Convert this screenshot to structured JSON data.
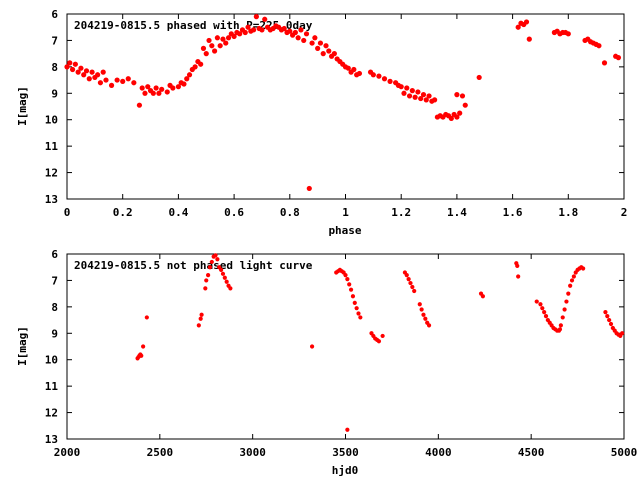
{
  "chart_data": [
    {
      "type": "scatter",
      "title": "204219-0815.5 phased with P=225.0day",
      "xlabel": "phase",
      "ylabel": "I[mag]",
      "xlim": [
        0,
        2
      ],
      "ylim": [
        13,
        6
      ],
      "y_inverted": true,
      "grid": false,
      "marker_color": "#ff0000",
      "x_ticks": [
        "0",
        "0.2",
        "0.4",
        "0.6",
        "0.8",
        "1",
        "1.2",
        "1.4",
        "1.6",
        "1.8",
        "2"
      ],
      "y_ticks": [
        "6",
        "7",
        "8",
        "9",
        "10",
        "11",
        "12",
        "13"
      ],
      "series": [
        {
          "points": [
            [
              0.0,
              8.0
            ],
            [
              0.01,
              7.85
            ],
            [
              0.02,
              8.1
            ],
            [
              0.03,
              7.9
            ],
            [
              0.04,
              8.2
            ],
            [
              0.05,
              8.05
            ],
            [
              0.06,
              8.3
            ],
            [
              0.07,
              8.15
            ],
            [
              0.08,
              8.45
            ],
            [
              0.09,
              8.2
            ],
            [
              0.1,
              8.4
            ],
            [
              0.11,
              8.3
            ],
            [
              0.12,
              8.6
            ],
            [
              0.13,
              8.2
            ],
            [
              0.14,
              8.5
            ],
            [
              0.16,
              8.7
            ],
            [
              0.18,
              8.5
            ],
            [
              0.2,
              8.55
            ],
            [
              0.22,
              8.45
            ],
            [
              0.24,
              8.6
            ],
            [
              0.26,
              9.45
            ],
            [
              0.27,
              8.8
            ],
            [
              0.28,
              9.0
            ],
            [
              0.29,
              8.75
            ],
            [
              0.3,
              8.9
            ],
            [
              0.31,
              9.0
            ],
            [
              0.32,
              8.8
            ],
            [
              0.33,
              9.0
            ],
            [
              0.34,
              8.85
            ],
            [
              0.36,
              8.95
            ],
            [
              0.37,
              8.7
            ],
            [
              0.38,
              8.8
            ],
            [
              0.4,
              8.75
            ],
            [
              0.41,
              8.6
            ],
            [
              0.42,
              8.65
            ],
            [
              0.43,
              8.45
            ],
            [
              0.44,
              8.3
            ],
            [
              0.45,
              8.1
            ],
            [
              0.46,
              8.0
            ],
            [
              0.47,
              7.8
            ],
            [
              0.48,
              7.9
            ],
            [
              0.49,
              7.3
            ],
            [
              0.5,
              7.5
            ],
            [
              0.51,
              7.0
            ],
            [
              0.52,
              7.2
            ],
            [
              0.53,
              7.4
            ],
            [
              0.54,
              6.9
            ],
            [
              0.55,
              7.2
            ],
            [
              0.56,
              6.95
            ],
            [
              0.57,
              7.1
            ],
            [
              0.58,
              6.9
            ],
            [
              0.59,
              6.75
            ],
            [
              0.6,
              6.85
            ],
            [
              0.61,
              6.7
            ],
            [
              0.62,
              6.75
            ],
            [
              0.63,
              6.6
            ],
            [
              0.64,
              6.7
            ],
            [
              0.65,
              6.5
            ],
            [
              0.66,
              6.65
            ],
            [
              0.67,
              6.6
            ],
            [
              0.68,
              6.1
            ],
            [
              0.69,
              6.55
            ],
            [
              0.7,
              6.6
            ],
            [
              0.71,
              6.2
            ],
            [
              0.72,
              6.5
            ],
            [
              0.73,
              6.6
            ],
            [
              0.74,
              6.55
            ],
            [
              0.75,
              6.45
            ],
            [
              0.76,
              6.5
            ],
            [
              0.77,
              6.6
            ],
            [
              0.78,
              6.55
            ],
            [
              0.79,
              6.7
            ],
            [
              0.8,
              6.65
            ],
            [
              0.81,
              6.8
            ],
            [
              0.82,
              6.7
            ],
            [
              0.83,
              6.9
            ],
            [
              0.84,
              6.6
            ],
            [
              0.85,
              7.0
            ],
            [
              0.86,
              6.75
            ],
            [
              0.87,
              12.6
            ],
            [
              0.88,
              7.1
            ],
            [
              0.89,
              6.9
            ],
            [
              0.9,
              7.3
            ],
            [
              0.91,
              7.1
            ],
            [
              0.92,
              7.5
            ],
            [
              0.93,
              7.2
            ],
            [
              0.94,
              7.4
            ],
            [
              0.95,
              7.6
            ],
            [
              0.96,
              7.5
            ],
            [
              0.97,
              7.7
            ],
            [
              0.98,
              7.8
            ],
            [
              0.99,
              7.9
            ],
            [
              1.0,
              8.0
            ],
            [
              1.01,
              8.05
            ],
            [
              1.02,
              8.2
            ],
            [
              1.03,
              8.1
            ],
            [
              1.04,
              8.3
            ],
            [
              1.05,
              8.25
            ],
            [
              1.09,
              8.2
            ],
            [
              1.1,
              8.3
            ],
            [
              1.12,
              8.35
            ],
            [
              1.14,
              8.45
            ],
            [
              1.16,
              8.55
            ],
            [
              1.18,
              8.6
            ],
            [
              1.19,
              8.7
            ],
            [
              1.2,
              8.75
            ],
            [
              1.21,
              9.0
            ],
            [
              1.22,
              8.8
            ],
            [
              1.23,
              9.1
            ],
            [
              1.24,
              8.9
            ],
            [
              1.25,
              9.15
            ],
            [
              1.26,
              8.95
            ],
            [
              1.27,
              9.2
            ],
            [
              1.28,
              9.05
            ],
            [
              1.29,
              9.25
            ],
            [
              1.3,
              9.1
            ],
            [
              1.31,
              9.3
            ],
            [
              1.32,
              9.25
            ],
            [
              1.33,
              9.9
            ],
            [
              1.34,
              9.85
            ],
            [
              1.35,
              9.9
            ],
            [
              1.36,
              9.8
            ],
            [
              1.37,
              9.85
            ],
            [
              1.38,
              9.95
            ],
            [
              1.39,
              9.8
            ],
            [
              1.4,
              9.9
            ],
            [
              1.4,
              9.05
            ],
            [
              1.41,
              9.75
            ],
            [
              1.42,
              9.1
            ],
            [
              1.43,
              9.45
            ],
            [
              1.48,
              8.4
            ],
            [
              1.62,
              6.5
            ],
            [
              1.63,
              6.35
            ],
            [
              1.64,
              6.4
            ],
            [
              1.65,
              6.3
            ],
            [
              1.66,
              6.95
            ],
            [
              1.75,
              6.7
            ],
            [
              1.76,
              6.65
            ],
            [
              1.77,
              6.75
            ],
            [
              1.78,
              6.7
            ],
            [
              1.79,
              6.7
            ],
            [
              1.8,
              6.75
            ],
            [
              1.86,
              7.0
            ],
            [
              1.87,
              6.95
            ],
            [
              1.88,
              7.05
            ],
            [
              1.89,
              7.1
            ],
            [
              1.9,
              7.15
            ],
            [
              1.91,
              7.2
            ],
            [
              1.93,
              7.85
            ],
            [
              1.97,
              7.6
            ],
            [
              1.98,
              7.65
            ]
          ]
        }
      ]
    },
    {
      "type": "scatter",
      "title": "204219-0815.5 not phased light curve",
      "xlabel": "hjd0",
      "ylabel": "I[mag]",
      "xlim": [
        2000,
        5000
      ],
      "ylim": [
        13,
        6
      ],
      "y_inverted": true,
      "grid": false,
      "marker_color": "#ff0000",
      "x_ticks": [
        "2000",
        "2500",
        "3000",
        "3500",
        "4000",
        "4500",
        "5000"
      ],
      "y_ticks": [
        "6",
        "7",
        "8",
        "9",
        "10",
        "11",
        "12",
        "13"
      ],
      "series": [
        {
          "points": [
            [
              2380,
              9.95
            ],
            [
              2385,
              9.9
            ],
            [
              2390,
              9.85
            ],
            [
              2395,
              9.8
            ],
            [
              2400,
              9.85
            ],
            [
              2410,
              9.5
            ],
            [
              2430,
              8.4
            ],
            [
              2710,
              8.7
            ],
            [
              2720,
              8.45
            ],
            [
              2725,
              8.3
            ],
            [
              2745,
              7.3
            ],
            [
              2750,
              7.0
            ],
            [
              2760,
              6.8
            ],
            [
              2770,
              6.5
            ],
            [
              2780,
              6.3
            ],
            [
              2790,
              6.1
            ],
            [
              2800,
              6.05
            ],
            [
              2810,
              6.2
            ],
            [
              2820,
              6.5
            ],
            [
              2830,
              6.6
            ],
            [
              2840,
              6.75
            ],
            [
              2850,
              6.9
            ],
            [
              2860,
              7.05
            ],
            [
              2870,
              7.2
            ],
            [
              2880,
              7.3
            ],
            [
              3320,
              9.5
            ],
            [
              3450,
              6.7
            ],
            [
              3460,
              6.65
            ],
            [
              3470,
              6.6
            ],
            [
              3480,
              6.65
            ],
            [
              3490,
              6.7
            ],
            [
              3500,
              6.8
            ],
            [
              3510,
              6.95
            ],
            [
              3520,
              7.15
            ],
            [
              3530,
              7.35
            ],
            [
              3540,
              7.6
            ],
            [
              3550,
              7.85
            ],
            [
              3560,
              8.05
            ],
            [
              3570,
              8.25
            ],
            [
              3580,
              8.4
            ],
            [
              3510,
              12.65
            ],
            [
              3640,
              9.0
            ],
            [
              3650,
              9.1
            ],
            [
              3660,
              9.2
            ],
            [
              3670,
              9.25
            ],
            [
              3680,
              9.3
            ],
            [
              3700,
              9.1
            ],
            [
              3820,
              6.7
            ],
            [
              3830,
              6.8
            ],
            [
              3840,
              6.95
            ],
            [
              3850,
              7.1
            ],
            [
              3860,
              7.25
            ],
            [
              3870,
              7.4
            ],
            [
              3900,
              7.9
            ],
            [
              3910,
              8.1
            ],
            [
              3920,
              8.3
            ],
            [
              3930,
              8.45
            ],
            [
              3940,
              8.6
            ],
            [
              3950,
              8.7
            ],
            [
              4230,
              7.5
            ],
            [
              4240,
              7.6
            ],
            [
              4420,
              6.35
            ],
            [
              4425,
              6.45
            ],
            [
              4430,
              6.85
            ],
            [
              4530,
              7.8
            ],
            [
              4550,
              7.9
            ],
            [
              4560,
              8.05
            ],
            [
              4570,
              8.2
            ],
            [
              4580,
              8.35
            ],
            [
              4590,
              8.5
            ],
            [
              4600,
              8.6
            ],
            [
              4610,
              8.7
            ],
            [
              4620,
              8.8
            ],
            [
              4630,
              8.85
            ],
            [
              4640,
              8.9
            ],
            [
              4650,
              8.9
            ],
            [
              4655,
              8.85
            ],
            [
              4660,
              8.7
            ],
            [
              4670,
              8.4
            ],
            [
              4680,
              8.1
            ],
            [
              4690,
              7.8
            ],
            [
              4700,
              7.5
            ],
            [
              4710,
              7.2
            ],
            [
              4720,
              7.0
            ],
            [
              4730,
              6.85
            ],
            [
              4740,
              6.7
            ],
            [
              4750,
              6.6
            ],
            [
              4760,
              6.55
            ],
            [
              4770,
              6.5
            ],
            [
              4780,
              6.55
            ],
            [
              4900,
              8.2
            ],
            [
              4910,
              8.35
            ],
            [
              4920,
              8.5
            ],
            [
              4930,
              8.65
            ],
            [
              4940,
              8.8
            ],
            [
              4950,
              8.9
            ],
            [
              4960,
              9.0
            ],
            [
              4970,
              9.05
            ],
            [
              4980,
              9.1
            ],
            [
              4990,
              9.0
            ]
          ]
        }
      ]
    }
  ]
}
